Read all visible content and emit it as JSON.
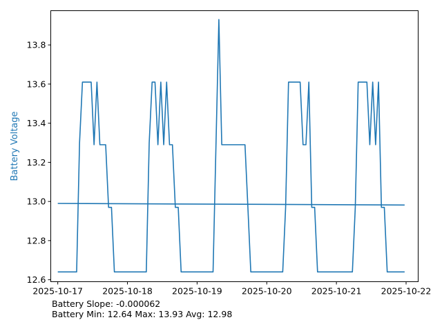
{
  "chart_data": {
    "type": "line",
    "title": "",
    "xlabel": "",
    "ylabel": "Battery Voltage",
    "ylabel_color": "#1f77b4",
    "line_color": "#1f77b4",
    "grid": false,
    "ylim": [
      12.59,
      13.975
    ],
    "x_range_days": [
      "2025-10-16T21:35",
      "2025-10-22T04:10"
    ],
    "x_ticks": [
      "2025-10-17",
      "2025-10-18",
      "2025-10-19",
      "2025-10-20",
      "2025-10-21",
      "2025-10-22"
    ],
    "y_ticks": [
      12.6,
      12.8,
      13.0,
      13.2,
      13.4,
      13.6,
      13.8
    ],
    "series": [
      {
        "x": [
          "2025-10-17T00:00",
          "2025-10-17T06:30",
          "2025-10-17T07:30",
          "2025-10-17T08:30",
          "2025-10-17T11:30",
          "2025-10-17T12:30",
          "2025-10-17T13:30",
          "2025-10-17T14:30",
          "2025-10-17T16:30",
          "2025-10-17T17:30",
          "2025-10-17T18:30",
          "2025-10-17T19:30",
          "2025-10-18T06:30",
          "2025-10-18T07:30",
          "2025-10-18T08:30",
          "2025-10-18T09:30",
          "2025-10-18T10:30",
          "2025-10-18T11:30",
          "2025-10-18T12:30",
          "2025-10-18T13:30",
          "2025-10-18T14:30",
          "2025-10-18T15:30",
          "2025-10-18T16:30",
          "2025-10-18T17:30",
          "2025-10-18T18:30",
          "2025-10-19T05:30",
          "2025-10-19T07:30",
          "2025-10-19T08:30",
          "2025-10-19T09:30",
          "2025-10-19T16:30",
          "2025-10-19T17:30",
          "2025-10-19T18:30",
          "2025-10-20T05:30",
          "2025-10-20T06:30",
          "2025-10-20T07:30",
          "2025-10-20T11:30",
          "2025-10-20T12:30",
          "2025-10-20T13:30",
          "2025-10-20T14:30",
          "2025-10-20T15:30",
          "2025-10-20T16:30",
          "2025-10-20T17:30",
          "2025-10-20T18:30",
          "2025-10-21T05:30",
          "2025-10-21T06:30",
          "2025-10-21T07:30",
          "2025-10-21T10:30",
          "2025-10-21T11:30",
          "2025-10-21T12:30",
          "2025-10-21T13:30",
          "2025-10-21T14:30",
          "2025-10-21T15:30",
          "2025-10-21T16:30",
          "2025-10-21T17:30",
          "2025-10-21T18:30",
          "2025-10-21T23:30"
        ],
        "y": [
          12.64,
          12.64,
          13.3,
          13.61,
          13.61,
          13.29,
          13.61,
          13.29,
          13.29,
          12.97,
          12.97,
          12.64,
          12.64,
          13.3,
          13.61,
          13.61,
          13.29,
          13.61,
          13.29,
          13.61,
          13.29,
          13.29,
          12.97,
          12.97,
          12.64,
          12.64,
          13.93,
          13.29,
          13.29,
          13.29,
          12.97,
          12.64,
          12.64,
          12.97,
          13.61,
          13.61,
          13.29,
          13.29,
          13.61,
          12.97,
          12.97,
          12.64,
          12.64,
          12.64,
          12.97,
          13.61,
          13.61,
          13.29,
          13.61,
          13.29,
          13.61,
          12.97,
          12.97,
          12.64,
          12.64,
          12.64
        ]
      },
      {
        "x": [
          "2025-10-17T00:00",
          "2025-10-21T23:30"
        ],
        "y": [
          12.99,
          12.982
        ]
      }
    ]
  },
  "stats": {
    "slope_text": "Battery Slope: -0.000062",
    "minmax_text": "Battery Min: 12.64 Max: 13.93 Avg: 12.98"
  }
}
